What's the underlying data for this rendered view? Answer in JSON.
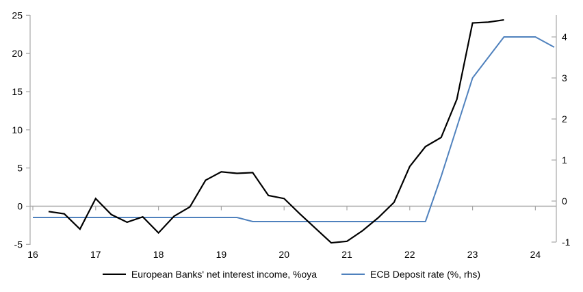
{
  "chart_data": {
    "type": "line",
    "title": "",
    "grid": "zero-line-only",
    "legend_position": "bottom-center",
    "x_ticks": [
      16,
      17,
      18,
      19,
      20,
      21,
      22,
      23,
      24
    ],
    "left_axis": {
      "ticks": [
        -5,
        0,
        5,
        10,
        15,
        20,
        25
      ],
      "range": [
        -5,
        25
      ]
    },
    "right_axis": {
      "ticks": [
        -1,
        0,
        1,
        2,
        3,
        4
      ],
      "range": [
        -1,
        4.7
      ]
    },
    "axis_color": "#a6a6a6",
    "series": [
      {
        "name": "European Banks' net interest income, %oya",
        "axis": "left",
        "color": "#000000",
        "x": [
          16.25,
          16.5,
          16.75,
          17.0,
          17.25,
          17.5,
          17.75,
          18.0,
          18.25,
          18.5,
          18.75,
          19.0,
          19.25,
          19.5,
          19.75,
          20.0,
          20.25,
          20.5,
          20.75,
          21.0,
          21.25,
          21.5,
          21.75,
          22.0,
          22.25,
          22.5,
          22.75,
          23.0,
          23.25,
          23.5
        ],
        "values": [
          -0.7,
          -1.0,
          -3.0,
          1.0,
          -1.1,
          -2.1,
          -1.4,
          -3.5,
          -1.3,
          -0.1,
          3.4,
          4.5,
          4.3,
          4.4,
          1.4,
          1.0,
          -1.0,
          -2.9,
          -4.8,
          -4.6,
          -3.2,
          -1.5,
          0.5,
          5.2,
          7.8,
          9.0,
          14.0,
          24.0,
          24.1,
          24.4
        ]
      },
      {
        "name": "ECB Deposit rate (%, rhs)",
        "axis": "right",
        "color": "#4f81bd",
        "x": [
          16.0,
          19.25,
          19.5,
          22.25,
          22.5,
          22.75,
          23.0,
          23.25,
          23.5,
          23.75,
          24.0,
          24.3
        ],
        "values": [
          -0.4,
          -0.4,
          -0.5,
          -0.5,
          0.6,
          1.8,
          3.0,
          3.5,
          4.0,
          4.0,
          4.0,
          3.75
        ]
      }
    ]
  },
  "legend": {
    "items": [
      {
        "label": "European Banks' net interest income, %oya",
        "color": "#000000"
      },
      {
        "label": "ECB Deposit rate (%, rhs)",
        "color": "#4f81bd"
      }
    ]
  }
}
